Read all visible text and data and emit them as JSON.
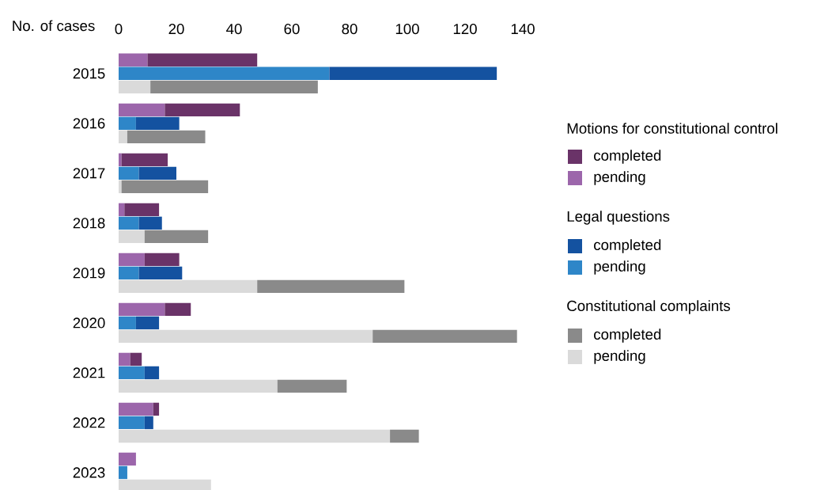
{
  "chart_data": {
    "type": "bar",
    "orientation": "horizontal",
    "stacked": true,
    "xlabel": "No. of cases",
    "legend": "right",
    "annotations": [
      "Motions for constitutional control",
      "Legal questions",
      "Constitutional complaints"
    ],
    "categories": [
      null,
      "2015",
      null,
      null,
      "2016",
      null,
      null,
      "2017",
      null,
      null,
      "2018",
      null,
      null,
      "2019",
      null,
      null,
      "2020",
      null,
      null,
      "2021",
      null,
      null,
      "2022",
      null,
      null,
      "2023",
      null
    ],
    "xlim": [
      0,
      140
    ],
    "xticks": [
      0,
      20,
      40,
      60,
      80,
      100,
      120,
      140
    ],
    "series": [
      {
        "name": "pending",
        "color": "#9c66ab",
        "values": [
          10,
          null,
          null,
          16,
          null,
          null,
          1,
          null,
          null,
          2,
          null,
          null,
          9,
          null,
          null,
          16,
          null,
          null,
          4,
          null,
          null,
          12,
          null,
          null,
          6,
          null,
          null
        ]
      },
      {
        "name": "completed",
        "color": "#6a3368",
        "values": [
          38,
          null,
          null,
          26,
          null,
          null,
          16,
          null,
          null,
          12,
          null,
          null,
          12,
          null,
          null,
          9,
          null,
          null,
          4,
          null,
          null,
          2,
          null,
          null,
          null,
          null,
          null
        ]
      },
      {
        "name": "pending",
        "color": "#2e86c8",
        "values": [
          null,
          73,
          null,
          null,
          6,
          null,
          null,
          7,
          null,
          null,
          7,
          null,
          null,
          7,
          null,
          null,
          6,
          null,
          null,
          9,
          null,
          null,
          9,
          null,
          null,
          3,
          null
        ]
      },
      {
        "name": "completed",
        "color": "#1452a0",
        "values": [
          null,
          58,
          null,
          null,
          15,
          null,
          null,
          13,
          null,
          null,
          8,
          null,
          null,
          15,
          null,
          null,
          8,
          null,
          null,
          5,
          null,
          null,
          3,
          null,
          null,
          null,
          null
        ]
      },
      {
        "name": "pending",
        "color": "#dadada",
        "values": [
          null,
          null,
          11,
          null,
          null,
          3,
          null,
          null,
          1,
          null,
          null,
          9,
          null,
          null,
          48,
          null,
          null,
          88,
          null,
          null,
          55,
          null,
          null,
          94,
          null,
          null,
          32
        ]
      },
      {
        "name": "completed",
        "color": "#8a8a8a",
        "values": [
          null,
          null,
          58,
          null,
          null,
          27,
          null,
          null,
          30,
          null,
          null,
          22,
          null,
          null,
          51,
          null,
          null,
          50,
          null,
          null,
          24,
          null,
          null,
          10,
          null,
          null,
          null
        ]
      }
    ]
  }
}
